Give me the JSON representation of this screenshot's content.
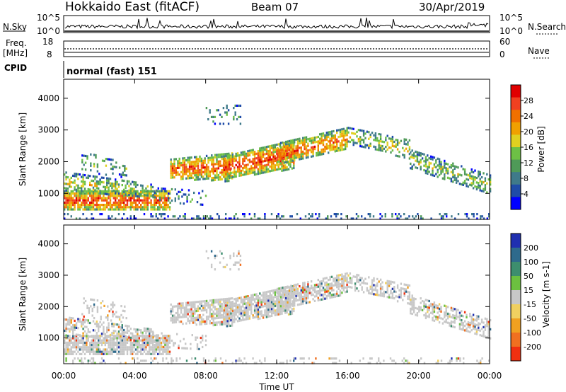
{
  "header": {
    "station": "Hokkaido East (fitACF)",
    "beam": "Beam 07",
    "date": "30/Apr/2019"
  },
  "noise_panel": {
    "left_label": "N.Sky",
    "right_label": "N.Search",
    "left_ticks": [
      "10^5",
      "10^0"
    ],
    "right_ticks": [
      "10^5",
      "10^0"
    ]
  },
  "freq_panel": {
    "left_label_1": "Freq.",
    "left_label_2": "[MHz]",
    "left_ticks": [
      "18",
      "8"
    ],
    "right_label": "Nave",
    "right_ticks": [
      "60",
      "0"
    ]
  },
  "cpid_panel": {
    "label": "CPID",
    "value": "normal (fast) 151"
  },
  "chart_data": [
    {
      "type": "heatmap",
      "name": "Power",
      "ylabel": "Slant Range [km]",
      "ylim": [
        180,
        4600
      ],
      "yticks": [
        1000,
        2000,
        3000,
        4000
      ],
      "colorbar": {
        "label": "Power [dB]",
        "ticks": [
          4,
          8,
          12,
          16,
          20,
          24,
          28
        ],
        "range": [
          0,
          32
        ],
        "colors": [
          "#0000ff",
          "#1f4ca8",
          "#3f7a8a",
          "#4f9a58",
          "#6dc045",
          "#e0d020",
          "#f0a000",
          "#f07000",
          "#f04020",
          "#e00000"
        ]
      }
    },
    {
      "type": "heatmap",
      "name": "Velocity",
      "ylabel": "Slant Range [km]",
      "ylim": [
        180,
        4600
      ],
      "yticks": [
        1000,
        2000,
        3000,
        4000
      ],
      "colorbar": {
        "label": "Velocity [m s-1]",
        "ticks": [
          "200",
          "100",
          "50",
          "15",
          "-15",
          "-50",
          "-100",
          "-200"
        ],
        "colors": [
          "#1f2fb0",
          "#2e6a8c",
          "#3d8e6e",
          "#6cc040",
          "#c8c8c8",
          "#f0d060",
          "#f0a020",
          "#f07020",
          "#f03010"
        ]
      }
    }
  ],
  "xaxis": {
    "label": "Time UT",
    "ticks": [
      "00:00",
      "04:00",
      "08:00",
      "12:00",
      "16:00",
      "20:00",
      "00:00"
    ]
  }
}
